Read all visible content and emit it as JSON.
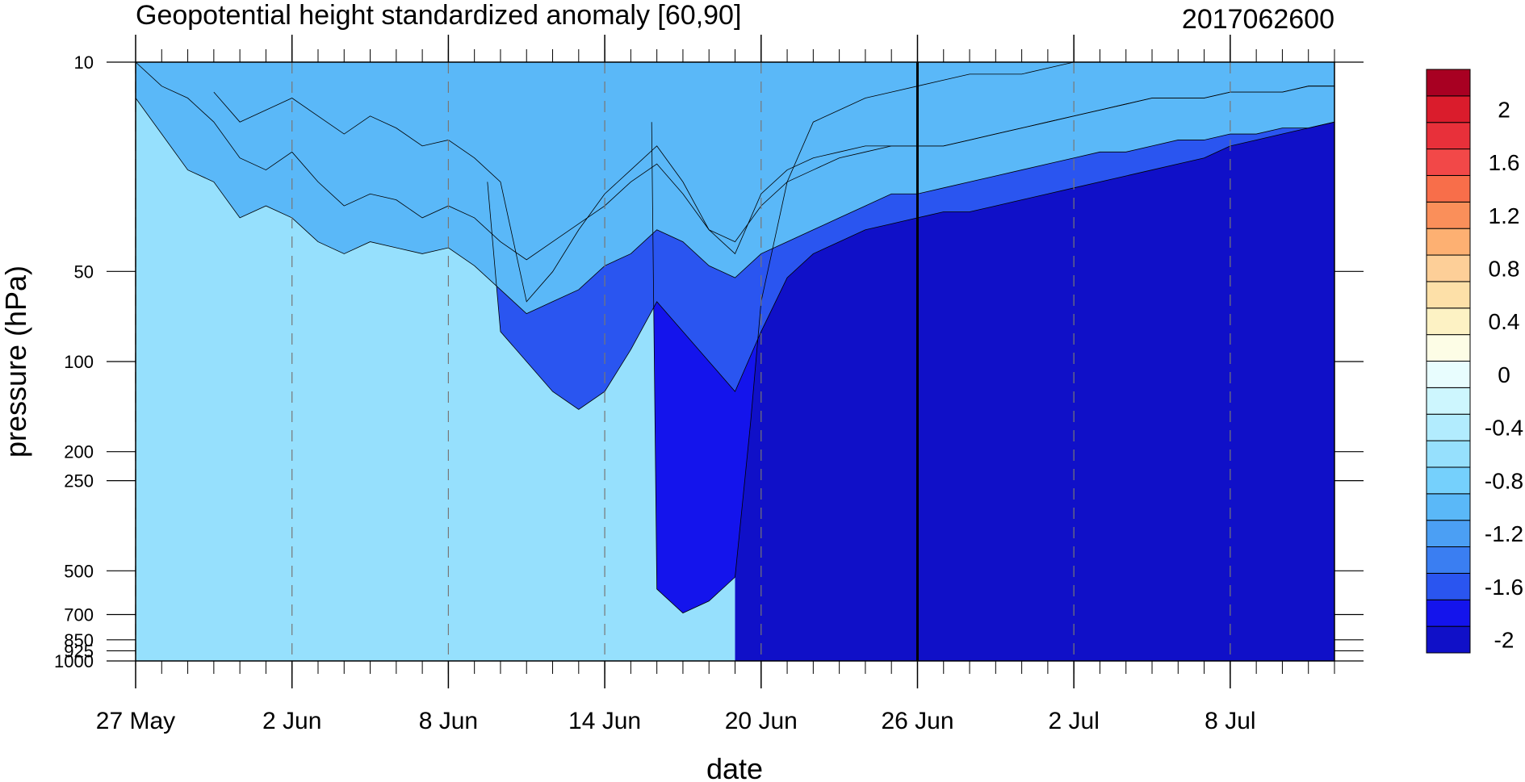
{
  "chart_data": {
    "type": "heatmap",
    "title": "Geopotential height standardized anomaly [60,90]",
    "subtitle": "2017062600",
    "xlabel": "date",
    "ylabel": "pressure (hPa)",
    "x_ticks": [
      "27 May",
      "2 Jun",
      "8 Jun",
      "14 Jun",
      "20 Jun",
      "26 Jun",
      "2 Jul",
      "8 Jul"
    ],
    "x_range": [
      "27 May",
      "12 Jul"
    ],
    "y_scale": "log",
    "y_reversed": true,
    "y_ticks": [
      10,
      50,
      100,
      200,
      250,
      500,
      700,
      850,
      925,
      1000
    ],
    "y_range": [
      1000,
      10
    ],
    "current_date_line": "26 Jun",
    "colorbar": {
      "levels": [
        -2.2,
        -2,
        -1.8,
        -1.6,
        -1.4,
        -1.2,
        -1,
        -0.8,
        -0.6,
        -0.4,
        -0.2,
        0,
        0.2,
        0.4,
        0.6,
        0.8,
        1,
        1.2,
        1.4,
        1.6,
        1.8,
        2,
        2.2
      ],
      "labels": [
        "-2",
        "-1.6",
        "-1.2",
        "-0.8",
        "-0.4",
        "0",
        "0.4",
        "0.8",
        "1.2",
        "1.6",
        "2"
      ],
      "colors": [
        "#1010c8",
        "#1414ec",
        "#2a55f0",
        "#3a7ef2",
        "#4b9ff4",
        "#5ab8f8",
        "#75d0fc",
        "#96e0fd",
        "#b2ecfe",
        "#cdf6fe",
        "#e8fdfe",
        "#fdfde6",
        "#fdf2c4",
        "#fde0a8",
        "#fdcf98",
        "#fdb072",
        "#fa8f5a",
        "#f86e4a",
        "#f24848",
        "#e8303a",
        "#da1c2c",
        "#a80022"
      ]
    },
    "series": [
      {
        "name": "-2",
        "values": [
          [
            23,
            100
          ],
          [
            24,
            100
          ],
          [
            25,
            100
          ],
          [
            26,
            100
          ],
          [
            27,
            100
          ],
          [
            28,
            100
          ],
          [
            29,
            100
          ],
          [
            30,
            100
          ],
          [
            31,
            100
          ],
          [
            32,
            100
          ],
          [
            33,
            100
          ],
          [
            34,
            100
          ],
          [
            35,
            100
          ],
          [
            36,
            100
          ],
          [
            37,
            100
          ],
          [
            38,
            100
          ],
          [
            39,
            100
          ],
          [
            40,
            100
          ],
          [
            41,
            100
          ],
          [
            42,
            100
          ],
          [
            43,
            100
          ],
          [
            44,
            100
          ],
          [
            45,
            100
          ],
          [
            46,
            100
          ],
          [
            47,
            100
          ],
          [
            48,
            100
          ]
        ]
      },
      {
        "name": "-1.8",
        "values": [
          [
            19.8,
            10
          ],
          [
            20,
            88
          ],
          [
            21,
            92
          ],
          [
            22,
            90
          ],
          [
            23,
            86
          ],
          [
            23.6,
            60
          ],
          [
            24,
            40
          ],
          [
            25,
            20
          ],
          [
            26,
            10
          ],
          [
            27,
            8
          ],
          [
            28,
            6
          ],
          [
            29,
            5
          ],
          [
            30,
            4
          ],
          [
            31,
            3
          ],
          [
            32,
            2
          ],
          [
            33,
            2
          ],
          [
            34,
            2
          ],
          [
            35,
            1
          ],
          [
            36,
            0
          ],
          [
            37,
            0
          ],
          [
            38,
            0
          ],
          [
            39,
            0
          ],
          [
            40,
            0
          ],
          [
            41,
            0
          ],
          [
            42,
            0
          ],
          [
            43,
            0
          ],
          [
            44,
            0
          ],
          [
            45,
            0
          ],
          [
            46,
            0
          ],
          [
            47,
            0
          ],
          [
            48,
            0
          ]
        ]
      },
      {
        "name": "-1.6",
        "values": [
          [
            13.5,
            20
          ],
          [
            14,
            45
          ],
          [
            15,
            50
          ],
          [
            16,
            55
          ],
          [
            17,
            58
          ],
          [
            18,
            55
          ],
          [
            19,
            48
          ],
          [
            20,
            40
          ],
          [
            21,
            45
          ],
          [
            22,
            50
          ],
          [
            23,
            55
          ],
          [
            24,
            45
          ],
          [
            25,
            36
          ],
          [
            26,
            32
          ],
          [
            27,
            30
          ],
          [
            28,
            28
          ],
          [
            29,
            27
          ],
          [
            30,
            26
          ],
          [
            31,
            25
          ],
          [
            32,
            25
          ],
          [
            33,
            24
          ],
          [
            34,
            23
          ],
          [
            35,
            22
          ],
          [
            36,
            21
          ],
          [
            37,
            20
          ],
          [
            38,
            19
          ],
          [
            39,
            18
          ],
          [
            40,
            17
          ],
          [
            41,
            16
          ],
          [
            42,
            14
          ],
          [
            43,
            13
          ],
          [
            44,
            12
          ],
          [
            45,
            11
          ],
          [
            46,
            10
          ],
          [
            47,
            9
          ],
          [
            48,
            8
          ]
        ]
      },
      {
        "name": "-1.4",
        "values": [
          [
            3,
            5
          ],
          [
            4,
            10
          ],
          [
            5,
            8
          ],
          [
            6,
            6
          ],
          [
            7,
            9
          ],
          [
            8,
            12
          ],
          [
            9,
            9
          ],
          [
            10,
            11
          ],
          [
            11,
            14
          ],
          [
            12,
            13
          ],
          [
            13,
            16
          ],
          [
            14,
            20
          ],
          [
            15,
            40
          ],
          [
            16,
            35
          ],
          [
            17,
            28
          ],
          [
            18,
            22
          ],
          [
            19,
            18
          ],
          [
            20,
            14
          ],
          [
            21,
            20
          ],
          [
            22,
            28
          ],
          [
            23,
            32
          ],
          [
            24,
            22
          ],
          [
            25,
            18
          ],
          [
            26,
            16
          ],
          [
            27,
            15
          ],
          [
            28,
            14
          ],
          [
            29,
            14
          ],
          [
            30,
            14
          ],
          [
            31,
            14
          ],
          [
            32,
            13
          ],
          [
            33,
            12
          ],
          [
            34,
            11
          ],
          [
            35,
            10
          ],
          [
            36,
            9
          ],
          [
            37,
            8
          ],
          [
            38,
            7
          ],
          [
            39,
            6
          ],
          [
            40,
            6
          ],
          [
            41,
            6
          ],
          [
            42,
            5
          ],
          [
            43,
            5
          ],
          [
            44,
            5
          ],
          [
            45,
            4
          ],
          [
            46,
            4
          ],
          [
            47,
            4
          ],
          [
            48,
            4
          ]
        ]
      },
      {
        "name": "-1.2",
        "values": [
          [
            0,
            0
          ],
          [
            1,
            4
          ],
          [
            2,
            6
          ],
          [
            3,
            10
          ],
          [
            4,
            16
          ],
          [
            5,
            18
          ],
          [
            6,
            15
          ],
          [
            7,
            20
          ],
          [
            8,
            24
          ],
          [
            9,
            22
          ],
          [
            10,
            23
          ],
          [
            11,
            26
          ],
          [
            12,
            24
          ],
          [
            13,
            26
          ],
          [
            14,
            30
          ],
          [
            15,
            33
          ],
          [
            16,
            30
          ],
          [
            17,
            27
          ],
          [
            18,
            24
          ],
          [
            19,
            20
          ],
          [
            20,
            17
          ],
          [
            21,
            22
          ],
          [
            22,
            28
          ],
          [
            23,
            30
          ],
          [
            24,
            24
          ],
          [
            25,
            20
          ],
          [
            26,
            18
          ],
          [
            27,
            16
          ],
          [
            28,
            15
          ],
          [
            29,
            14
          ],
          [
            30,
            14
          ],
          [
            31,
            14
          ],
          [
            32,
            13
          ],
          [
            33,
            12
          ],
          [
            34,
            11
          ],
          [
            35,
            10
          ],
          [
            36,
            9
          ],
          [
            37,
            8
          ],
          [
            38,
            7
          ],
          [
            39,
            6
          ],
          [
            40,
            6
          ],
          [
            41,
            6
          ],
          [
            42,
            5
          ],
          [
            43,
            5
          ],
          [
            44,
            5
          ],
          [
            45,
            4
          ],
          [
            46,
            4
          ],
          [
            47,
            4
          ],
          [
            48,
            4
          ]
        ]
      },
      {
        "name": "-1",
        "values": [
          [
            0,
            6
          ],
          [
            1,
            12
          ],
          [
            2,
            18
          ],
          [
            3,
            20
          ],
          [
            4,
            26
          ],
          [
            5,
            24
          ],
          [
            6,
            26
          ],
          [
            7,
            30
          ],
          [
            8,
            32
          ],
          [
            9,
            30
          ],
          [
            10,
            31
          ],
          [
            11,
            32
          ],
          [
            12,
            31
          ],
          [
            13,
            34
          ],
          [
            14,
            38
          ],
          [
            15,
            42
          ],
          [
            16,
            40
          ],
          [
            17,
            38
          ],
          [
            18,
            34
          ],
          [
            19,
            32
          ],
          [
            20,
            28
          ],
          [
            21,
            30
          ],
          [
            22,
            34
          ],
          [
            23,
            36
          ],
          [
            24,
            32
          ],
          [
            25,
            30
          ],
          [
            26,
            28
          ],
          [
            27,
            26
          ],
          [
            28,
            24
          ],
          [
            29,
            22
          ],
          [
            30,
            22
          ],
          [
            31,
            21
          ],
          [
            32,
            20
          ],
          [
            33,
            19
          ],
          [
            34,
            18
          ],
          [
            35,
            17
          ],
          [
            36,
            16
          ],
          [
            37,
            15
          ],
          [
            38,
            15
          ],
          [
            39,
            14
          ],
          [
            40,
            13
          ],
          [
            41,
            13
          ],
          [
            42,
            12
          ],
          [
            43,
            12
          ],
          [
            44,
            11
          ],
          [
            45,
            11
          ],
          [
            46,
            10
          ],
          [
            47,
            10
          ],
          [
            48,
            10
          ]
        ]
      }
    ]
  }
}
